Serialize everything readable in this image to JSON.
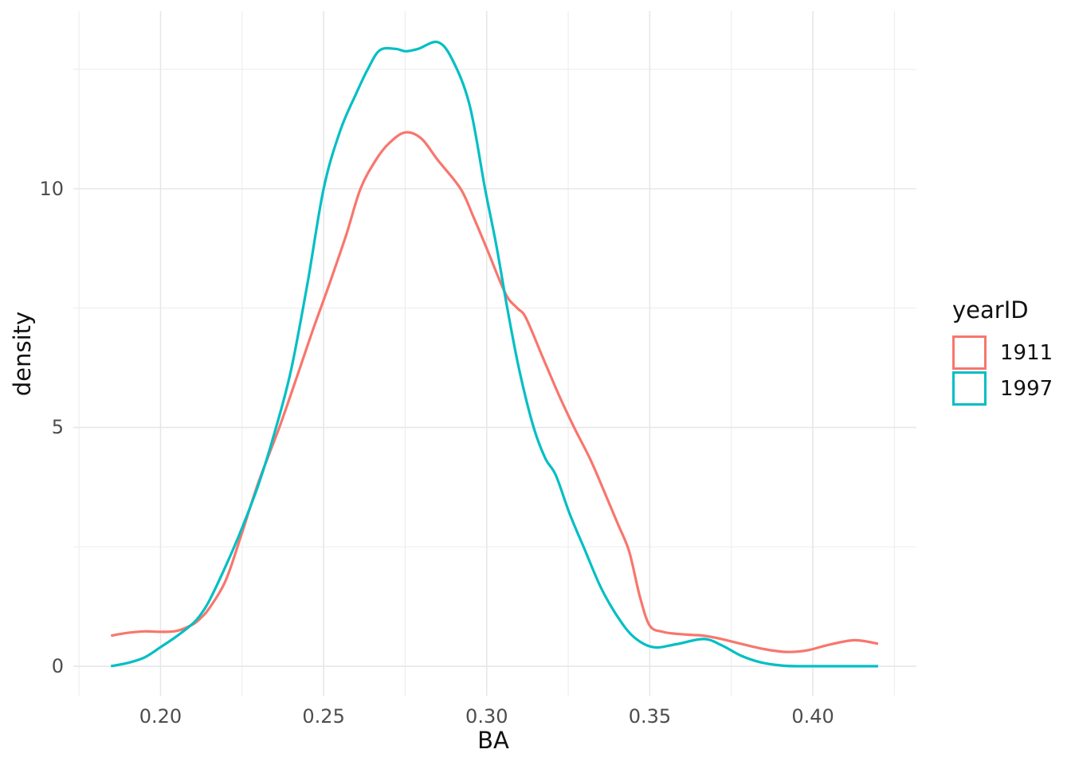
{
  "figure": {
    "background": "#FFFFFF"
  },
  "axes": {
    "x": {
      "title": "BA",
      "ticks": [
        {
          "label": "0.20",
          "value": 0.2
        },
        {
          "label": "0.25",
          "value": 0.25
        },
        {
          "label": "0.30",
          "value": 0.3
        },
        {
          "label": "0.35",
          "value": 0.35
        },
        {
          "label": "0.40",
          "value": 0.4
        }
      ],
      "minor_gridlines": [
        0.175,
        0.225,
        0.275,
        0.325,
        0.375,
        0.425
      ],
      "range": [
        0.17325,
        0.43175
      ]
    },
    "y": {
      "title": "density",
      "ticks": [
        {
          "label": "0",
          "value": 0
        },
        {
          "label": "5",
          "value": 5
        },
        {
          "label": "10",
          "value": 10
        }
      ],
      "minor_gridlines": [
        2.5,
        7.5,
        12.5
      ],
      "range": [
        -0.617,
        13.72
      ]
    }
  },
  "legend": {
    "title": "yearID",
    "entries": [
      {
        "label": "1911",
        "color": "#F8766D"
      },
      {
        "label": "1997",
        "color": "#00BFC4"
      }
    ]
  },
  "style": {
    "grid_major_color": "#E7E7E7",
    "grid_minor_color": "#EDEDED",
    "tick_label_color": "#4D4D4D",
    "curve_width": 3.2
  },
  "chart_data": {
    "type": "line",
    "subtype": "kernel-density",
    "title": "",
    "xlabel": "BA",
    "ylabel": "density",
    "legend_title": "yearID",
    "legend_position": "right",
    "grid": true,
    "x_range": [
      0.17325,
      0.43175
    ],
    "y_range": [
      -0.617,
      13.72
    ],
    "series": [
      {
        "name": "1911",
        "color": "#F8766D",
        "points": [
          [
            0.1848,
            0.64
          ],
          [
            0.19,
            0.7
          ],
          [
            0.195,
            0.73
          ],
          [
            0.2,
            0.72
          ],
          [
            0.205,
            0.74
          ],
          [
            0.21,
            0.88
          ],
          [
            0.2125,
            1.02
          ],
          [
            0.215,
            1.22
          ],
          [
            0.22,
            1.8
          ],
          [
            0.225,
            2.8
          ],
          [
            0.23,
            3.85
          ],
          [
            0.2364,
            5.0
          ],
          [
            0.2423,
            6.16
          ],
          [
            0.247,
            7.1
          ],
          [
            0.252,
            8.05
          ],
          [
            0.257,
            9.05
          ],
          [
            0.2613,
            10.0
          ],
          [
            0.266,
            10.6
          ],
          [
            0.27,
            10.95
          ],
          [
            0.275,
            11.18
          ],
          [
            0.28,
            11.05
          ],
          [
            0.285,
            10.6
          ],
          [
            0.292,
            10.0
          ],
          [
            0.296,
            9.4
          ],
          [
            0.3,
            8.75
          ],
          [
            0.3058,
            7.8
          ],
          [
            0.3094,
            7.5
          ],
          [
            0.312,
            7.3
          ],
          [
            0.317,
            6.5
          ],
          [
            0.322,
            5.7
          ],
          [
            0.3268,
            5.0
          ],
          [
            0.332,
            4.3
          ],
          [
            0.337,
            3.5
          ],
          [
            0.3404,
            2.95
          ],
          [
            0.3437,
            2.4
          ],
          [
            0.347,
            1.45
          ],
          [
            0.35,
            0.85
          ],
          [
            0.354,
            0.72
          ],
          [
            0.358,
            0.68
          ],
          [
            0.363,
            0.655
          ],
          [
            0.3665,
            0.64
          ],
          [
            0.372,
            0.57
          ],
          [
            0.378,
            0.47
          ],
          [
            0.385,
            0.36
          ],
          [
            0.3917,
            0.3
          ],
          [
            0.398,
            0.33
          ],
          [
            0.405,
            0.45
          ],
          [
            0.4128,
            0.545
          ],
          [
            0.42,
            0.47
          ]
        ]
      },
      {
        "name": "1997",
        "color": "#00BFC4",
        "points": [
          [
            0.1848,
            0.0
          ],
          [
            0.19,
            0.07
          ],
          [
            0.195,
            0.18
          ],
          [
            0.2,
            0.4
          ],
          [
            0.205,
            0.63
          ],
          [
            0.21,
            0.9
          ],
          [
            0.2125,
            1.1
          ],
          [
            0.215,
            1.38
          ],
          [
            0.22,
            2.1
          ],
          [
            0.225,
            2.9
          ],
          [
            0.23,
            3.8
          ],
          [
            0.235,
            4.9
          ],
          [
            0.24,
            6.2
          ],
          [
            0.245,
            8.0
          ],
          [
            0.25,
            10.0
          ],
          [
            0.255,
            11.2
          ],
          [
            0.26,
            12.0
          ],
          [
            0.2635,
            12.5
          ],
          [
            0.2672,
            12.9
          ],
          [
            0.272,
            12.93
          ],
          [
            0.2752,
            12.88
          ],
          [
            0.279,
            12.93
          ],
          [
            0.285,
            13.07
          ],
          [
            0.2895,
            12.7
          ],
          [
            0.2948,
            11.74
          ],
          [
            0.2995,
            10.0
          ],
          [
            0.303,
            8.8
          ],
          [
            0.3063,
            7.5
          ],
          [
            0.31,
            6.2
          ],
          [
            0.3144,
            5.0
          ],
          [
            0.318,
            4.35
          ],
          [
            0.3212,
            4.0
          ],
          [
            0.3254,
            3.2
          ],
          [
            0.33,
            2.45
          ],
          [
            0.335,
            1.65
          ],
          [
            0.34,
            1.05
          ],
          [
            0.345,
            0.62
          ],
          [
            0.351,
            0.4
          ],
          [
            0.358,
            0.46
          ],
          [
            0.3665,
            0.57
          ],
          [
            0.372,
            0.44
          ],
          [
            0.378,
            0.22
          ],
          [
            0.384,
            0.08
          ],
          [
            0.391,
            0.01
          ],
          [
            0.397,
            0.0
          ],
          [
            0.405,
            0.0
          ],
          [
            0.413,
            0.0
          ],
          [
            0.42,
            0.0
          ]
        ]
      }
    ]
  }
}
